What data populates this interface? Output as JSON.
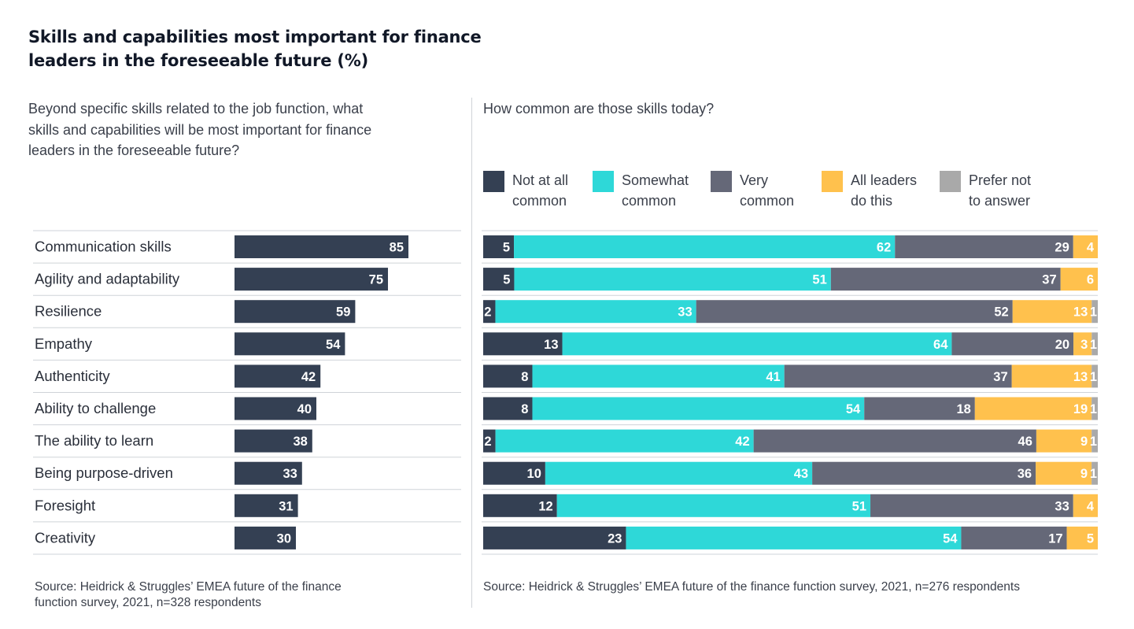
{
  "header": {
    "title": "Skills and capabilities most important for finance leaders in the foreseeable future (%)"
  },
  "left_panel": {
    "question": "Beyond specific skills related to the job function, what skills and capabilities will be most important for finance leaders in the foreseeable future?",
    "source": "Source: Heidrick & Struggles’ EMEA future of the finance function survey, 2021, n=328 respondents"
  },
  "right_panel": {
    "question": "How common are those skills today?",
    "source": "Source: Heidrick & Struggles’ EMEA future of the finance function survey, 2021, n=276 respondents"
  },
  "legend": [
    {
      "label": "Not at all\ncommon",
      "color": "#344053"
    },
    {
      "label": "Somewhat\ncommon",
      "color": "#2ed8d8"
    },
    {
      "label": "Very\ncommon",
      "color": "#656878"
    },
    {
      "label": "All leaders\ndo this",
      "color": "#ffc14d"
    },
    {
      "label": "Prefer not\nto answer",
      "color": "#a9a9a9"
    }
  ],
  "chart_data": [
    {
      "type": "bar",
      "orientation": "horizontal",
      "categories": [
        "Communication skills",
        "Agility and adaptability",
        "Resilience",
        "Empathy",
        "Authenticity",
        "Ability to challenge",
        "The ability to learn",
        "Being purpose-driven",
        "Foresight",
        "Creativity"
      ],
      "values": [
        85,
        75,
        59,
        54,
        42,
        40,
        38,
        33,
        31,
        30
      ],
      "xlim": [
        0,
        100
      ],
      "color": "#344053",
      "data_labels": true
    },
    {
      "type": "bar",
      "orientation": "horizontal",
      "stacked": true,
      "categories": [
        "Communication skills",
        "Agility and adaptability",
        "Resilience",
        "Empathy",
        "Authenticity",
        "Ability to challenge",
        "The ability to learn",
        "Being purpose-driven",
        "Foresight",
        "Creativity"
      ],
      "series": [
        {
          "name": "Not at all common",
          "color": "#344053",
          "values": [
            5,
            5,
            2,
            13,
            8,
            8,
            2,
            10,
            12,
            23
          ]
        },
        {
          "name": "Somewhat common",
          "color": "#2ed8d8",
          "values": [
            62,
            51,
            33,
            64,
            41,
            54,
            42,
            43,
            51,
            54
          ]
        },
        {
          "name": "Very common",
          "color": "#656878",
          "values": [
            29,
            37,
            52,
            20,
            37,
            18,
            46,
            36,
            33,
            17
          ]
        },
        {
          "name": "All leaders do this",
          "color": "#ffc14d",
          "values": [
            4,
            6,
            13,
            3,
            13,
            19,
            9,
            9,
            4,
            5
          ]
        },
        {
          "name": "Prefer not to answer",
          "color": "#a9a9a9",
          "values": [
            0,
            0,
            1,
            1,
            1,
            1,
            1,
            1,
            0,
            0
          ]
        }
      ],
      "data_labels": true
    }
  ]
}
